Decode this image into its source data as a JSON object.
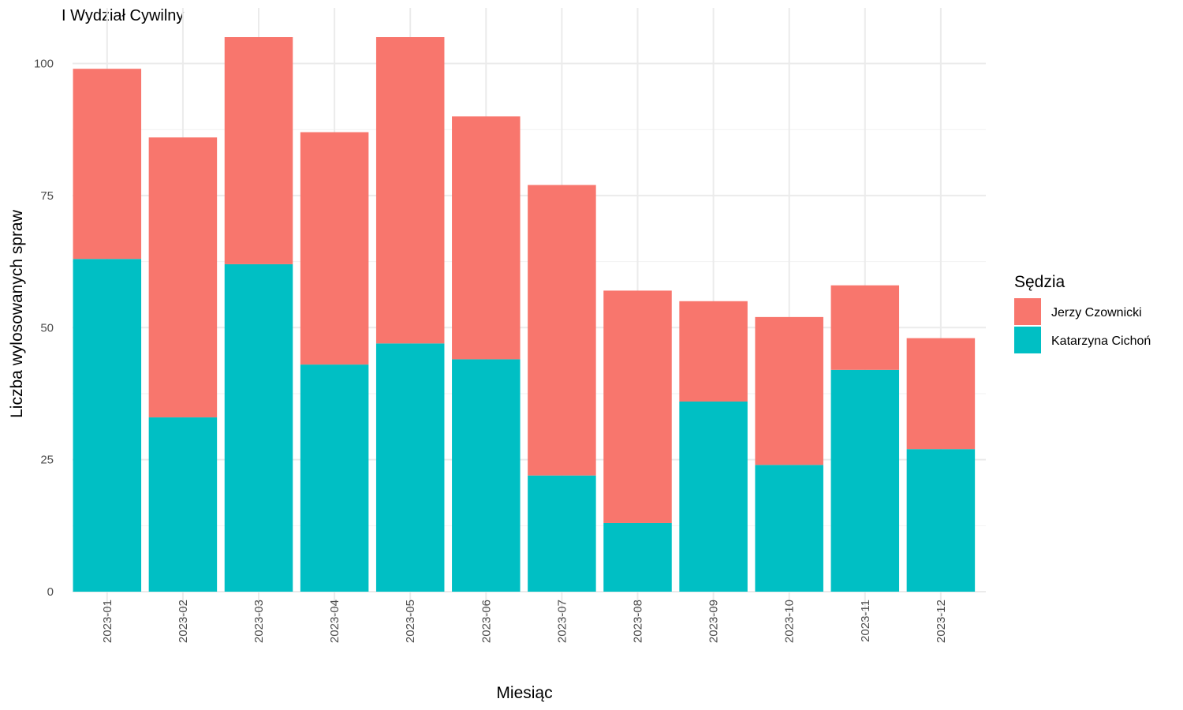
{
  "chart_data": {
    "type": "bar",
    "stacked": true,
    "title": "I Wydział Cywilny",
    "xlabel": "Miesiąc",
    "ylabel": "Liczba wylosowanych spraw",
    "ylim": [
      0,
      105
    ],
    "yticks": [
      0,
      25,
      50,
      75,
      100
    ],
    "grid": true,
    "legend_position": "right",
    "legend_title": "Sędzia",
    "categories": [
      "2023-01",
      "2023-02",
      "2023-03",
      "2023-04",
      "2023-05",
      "2023-06",
      "2023-07",
      "2023-08",
      "2023-09",
      "2023-10",
      "2023-11",
      "2023-12"
    ],
    "series": [
      {
        "name": "Katarzyna Cichoń",
        "color": "#00BFC4",
        "values": [
          63,
          33,
          62,
          43,
          47,
          44,
          22,
          13,
          36,
          24,
          42,
          27
        ]
      },
      {
        "name": "Jerzy Czownicki",
        "color": "#F8766D",
        "values": [
          36,
          53,
          43,
          44,
          58,
          46,
          55,
          44,
          19,
          28,
          16,
          21
        ]
      }
    ],
    "legend_order": [
      "Jerzy Czownicki",
      "Katarzyna Cichoń"
    ]
  }
}
